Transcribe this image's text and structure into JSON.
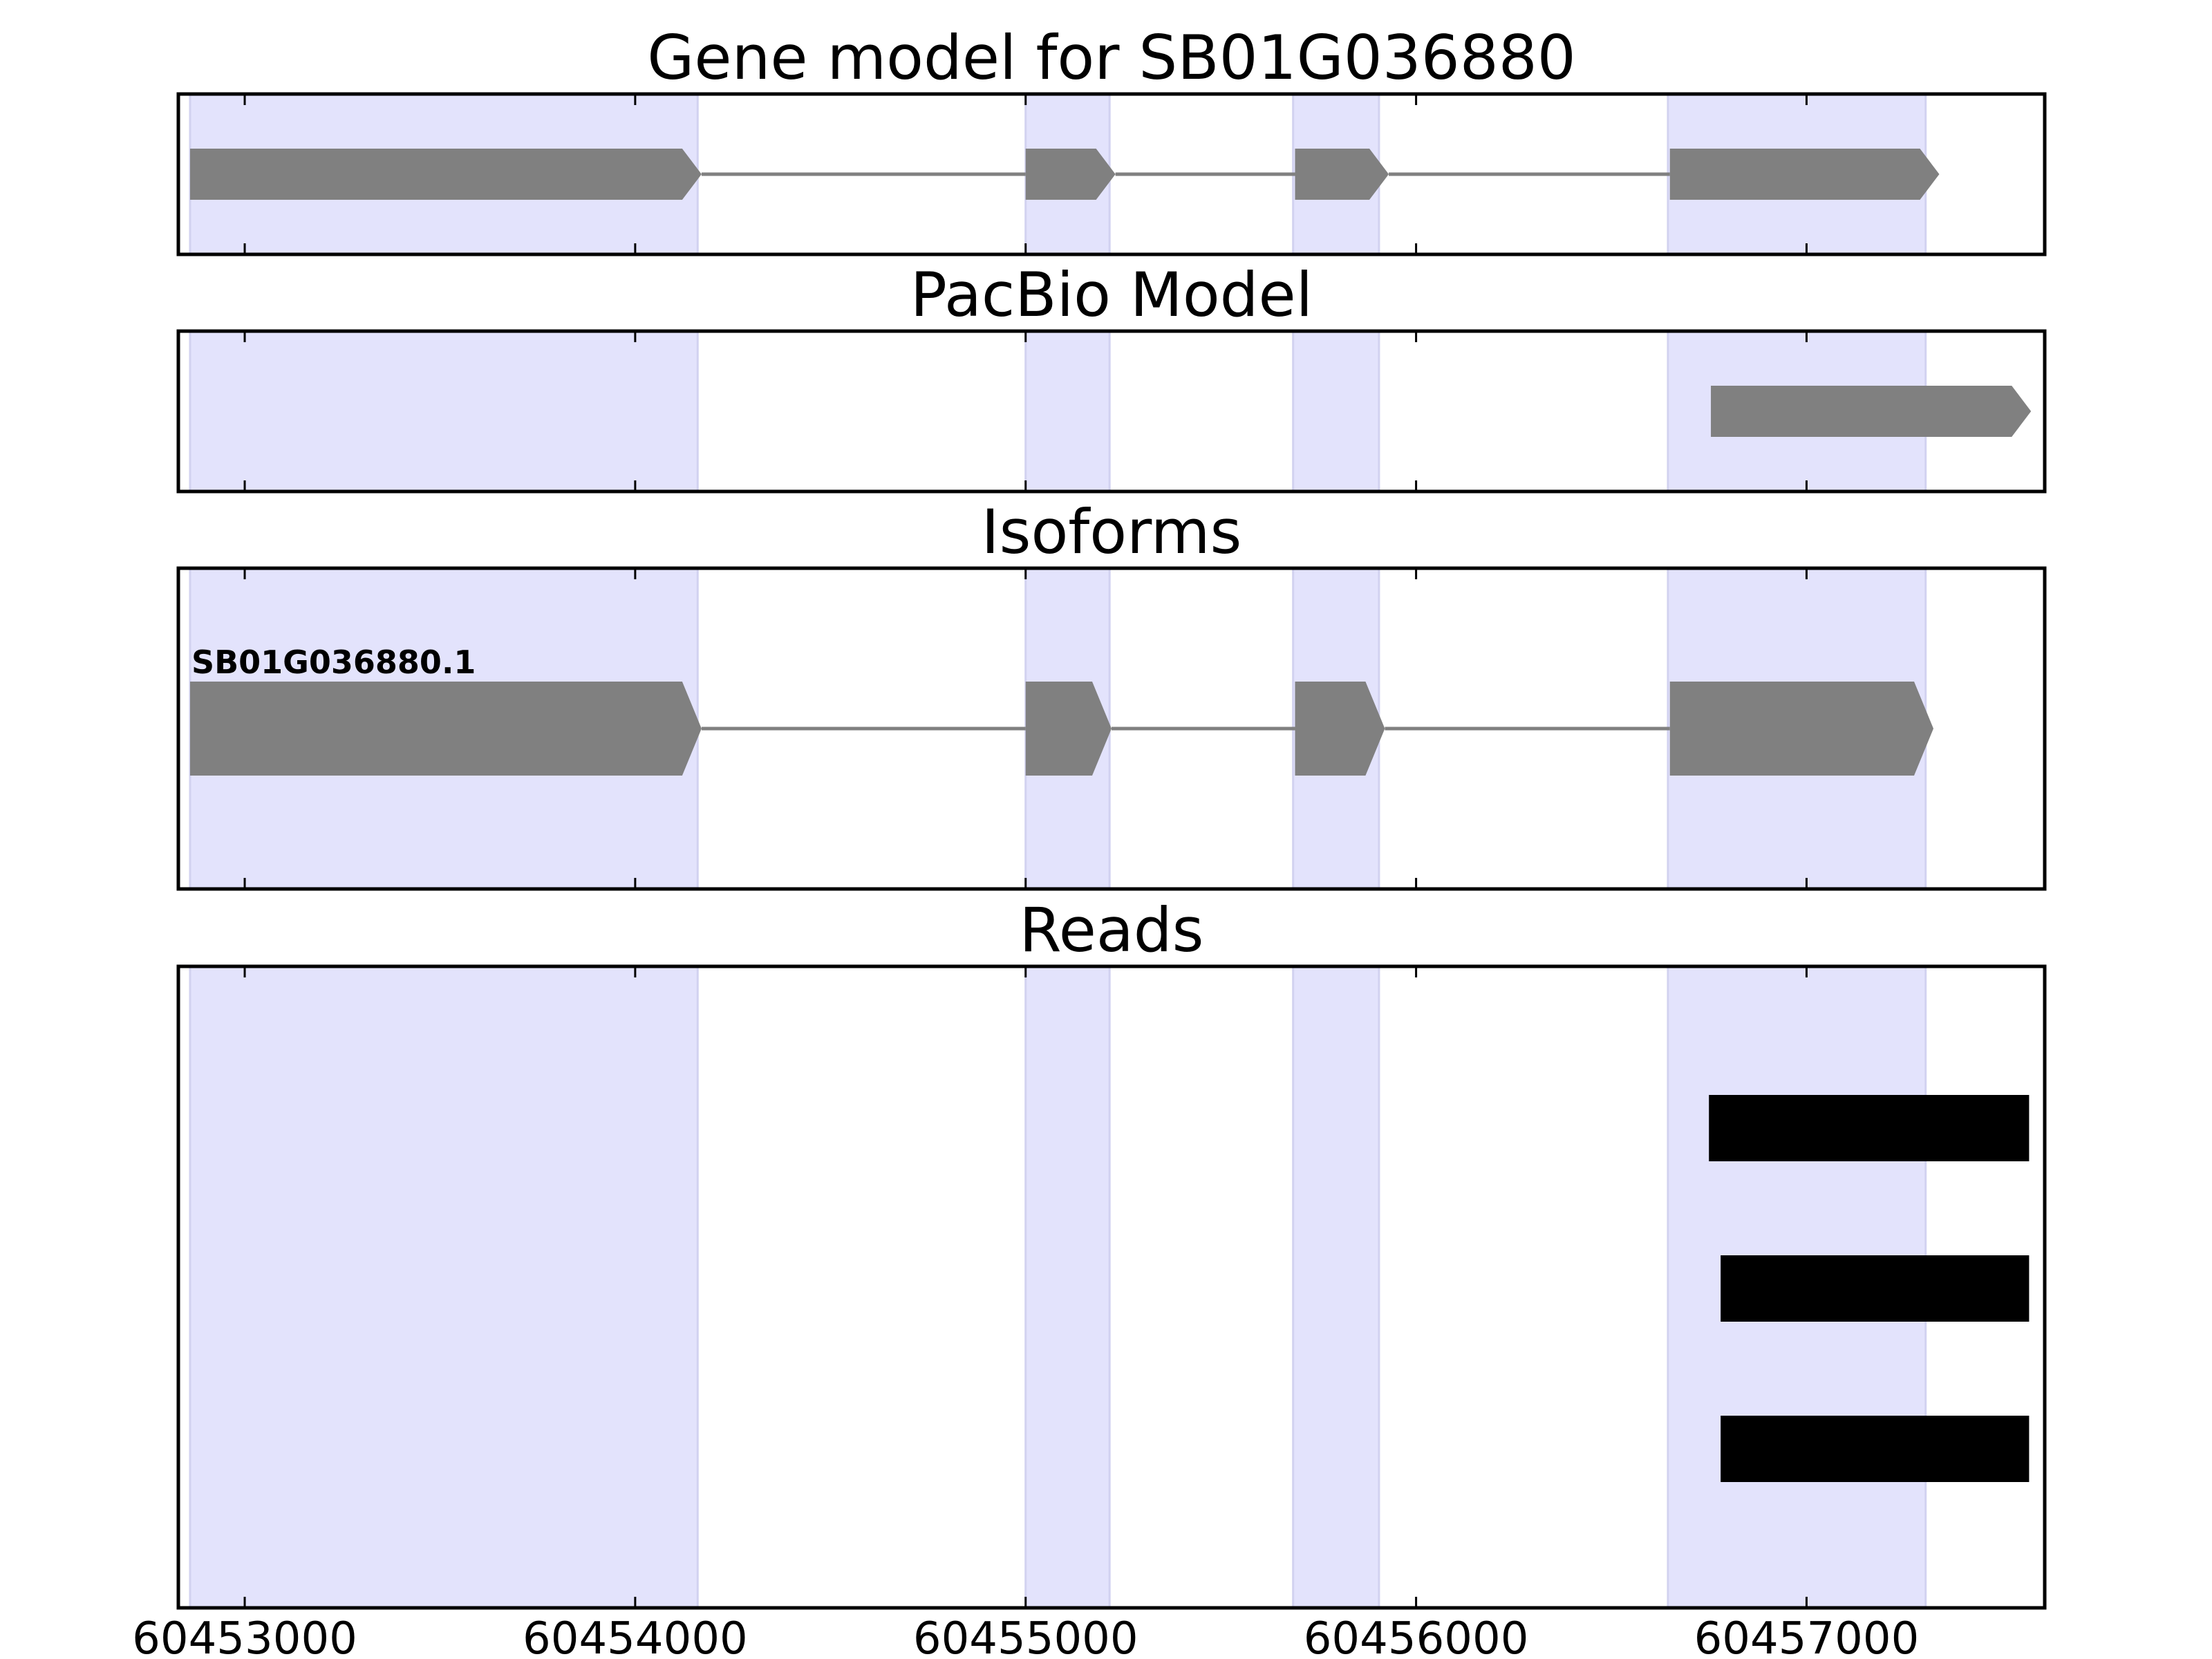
{
  "chart_data": {
    "type": "gene-model",
    "xlim": [
      60452830,
      60457610
    ],
    "xticks": [
      60453000,
      60454000,
      60455000,
      60456000,
      60457000
    ],
    "xtick_labels": [
      "60453000",
      "60454000",
      "60455000",
      "60456000",
      "60457000"
    ],
    "exon_highlights": [
      [
        60452860,
        60454160
      ],
      [
        60455000,
        60455215
      ],
      [
        60455685,
        60455905
      ],
      [
        60456645,
        60457305
      ]
    ],
    "colors": {
      "highlight": "#e3e3fc",
      "highlight_edge": "#d2d2f0",
      "feature": "#808080",
      "read": "#000000",
      "axes": "#000000"
    },
    "panels": [
      {
        "title": "Gene model for SB01G036880",
        "kind": "gene",
        "strand": "+",
        "exons": [
          [
            60452860,
            60454170
          ],
          [
            60455000,
            60455230
          ],
          [
            60455690,
            60455930
          ],
          [
            60456650,
            60457340
          ]
        ]
      },
      {
        "title": "PacBio Model",
        "kind": "gene",
        "strand": "+",
        "exons": [
          [
            60456755,
            60457575
          ]
        ]
      },
      {
        "title": "Isoforms",
        "kind": "isoform",
        "strand": "+",
        "isoform_label": "SB01G036880.1",
        "exons": [
          [
            60452860,
            60454170
          ],
          [
            60455000,
            60455220
          ],
          [
            60455690,
            60455920
          ],
          [
            60456650,
            60457325
          ]
        ]
      },
      {
        "title": "Reads",
        "kind": "reads",
        "reads": [
          [
            60456750,
            60457570
          ],
          [
            60456780,
            60457570
          ],
          [
            60456780,
            60457570
          ]
        ]
      }
    ]
  }
}
